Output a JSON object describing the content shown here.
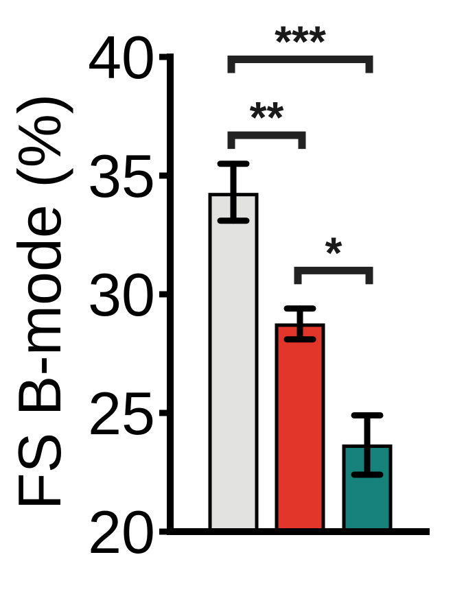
{
  "chart_data": {
    "type": "bar",
    "ylabel": "FS B-mode (%)",
    "xlabel": "",
    "title": "",
    "ylim": [
      20,
      40
    ],
    "yticks": [
      20,
      25,
      30,
      35,
      40
    ],
    "grid": false,
    "legend": "none",
    "categories": [
      "",
      "",
      ""
    ],
    "values": [
      34.2,
      28.7,
      23.6
    ],
    "errors": [
      {
        "low": 33.1,
        "high": 35.5
      },
      {
        "low": 28.1,
        "high": 29.4
      },
      {
        "low": 22.4,
        "high": 24.9
      }
    ],
    "colors": [
      "#e2e2e0",
      "#e2362b",
      "#17817c"
    ],
    "significance": [
      {
        "from": 0,
        "to": 2,
        "label": "***",
        "level": 39.9
      },
      {
        "from": 0,
        "to": 1,
        "label": "**",
        "level": 36.7
      },
      {
        "from": 1,
        "to": 2,
        "label": "*",
        "level": 31.0
      }
    ]
  }
}
